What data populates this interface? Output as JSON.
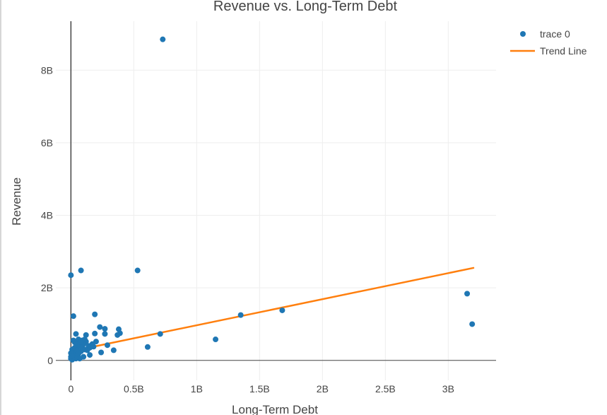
{
  "chart_data": {
    "type": "scatter",
    "title": "Revenue vs. Long-Term Debt",
    "xlabel": "Long-Term Debt",
    "ylabel": "Revenue",
    "xlim": [
      -0.12,
      3.38
    ],
    "ylim": [
      -0.55,
      9.35
    ],
    "x_ticks": [
      0,
      0.5,
      1,
      1.5,
      2,
      2.5,
      3
    ],
    "x_tick_labels": [
      "0",
      "0.5B",
      "1B",
      "1.5B",
      "2B",
      "2.5B",
      "3B"
    ],
    "y_ticks": [
      0,
      2,
      4,
      6,
      8
    ],
    "y_tick_labels": [
      "0",
      "2B",
      "4B",
      "6B",
      "8B"
    ],
    "grid": true,
    "legend_position": "top-right",
    "colors": {
      "points": "#1f77b4",
      "trend": "#ff7f0e",
      "grid": "#eeeeee",
      "zero_line": "#444444"
    },
    "series": [
      {
        "name": "trace 0",
        "mode": "markers",
        "points": [
          [
            0.73,
            8.85
          ],
          [
            0.0,
            2.35
          ],
          [
            0.08,
            2.48
          ],
          [
            0.53,
            2.48
          ],
          [
            0.02,
            1.22
          ],
          [
            0.19,
            1.27
          ],
          [
            3.15,
            1.84
          ],
          [
            3.19,
            1.0
          ],
          [
            1.35,
            1.25
          ],
          [
            1.68,
            1.38
          ],
          [
            1.15,
            0.58
          ],
          [
            0.61,
            0.37
          ],
          [
            0.71,
            0.73
          ],
          [
            0.38,
            0.86
          ],
          [
            0.39,
            0.75
          ],
          [
            0.37,
            0.7
          ],
          [
            0.27,
            0.87
          ],
          [
            0.23,
            0.92
          ],
          [
            0.27,
            0.73
          ],
          [
            0.19,
            0.74
          ],
          [
            0.12,
            0.7
          ],
          [
            0.04,
            0.73
          ],
          [
            0.06,
            0.58
          ],
          [
            0.09,
            0.55
          ],
          [
            0.12,
            0.52
          ],
          [
            0.2,
            0.52
          ],
          [
            0.17,
            0.45
          ],
          [
            0.14,
            0.4
          ],
          [
            0.18,
            0.38
          ],
          [
            0.29,
            0.42
          ],
          [
            0.34,
            0.28
          ],
          [
            0.24,
            0.22
          ],
          [
            0.15,
            0.15
          ],
          [
            0.1,
            0.1
          ],
          [
            0.02,
            0.55
          ],
          [
            0.03,
            0.5
          ],
          [
            0.05,
            0.45
          ],
          [
            0.07,
            0.4
          ],
          [
            0.09,
            0.35
          ],
          [
            0.11,
            0.3
          ],
          [
            0.13,
            0.28
          ],
          [
            0.01,
            0.3
          ],
          [
            0.02,
            0.25
          ],
          [
            0.03,
            0.2
          ],
          [
            0.04,
            0.15
          ],
          [
            0.05,
            0.12
          ],
          [
            0.06,
            0.08
          ],
          [
            0.07,
            0.05
          ],
          [
            0.08,
            0.25
          ],
          [
            0.1,
            0.45
          ],
          [
            0.0,
            0.1
          ],
          [
            0.0,
            0.05
          ],
          [
            0.01,
            0.02
          ],
          [
            0.02,
            0.08
          ],
          [
            0.03,
            0.35
          ],
          [
            0.04,
            0.05
          ],
          [
            0.05,
            0.28
          ],
          [
            0.06,
            0.18
          ],
          [
            0.0,
            0.2
          ],
          [
            0.01,
            0.12
          ],
          [
            0.08,
            0.5
          ],
          [
            0.11,
            0.58
          ],
          [
            0.15,
            0.35
          ]
        ]
      },
      {
        "name": "Trend Line",
        "mode": "line",
        "points": [
          [
            0.0,
            0.25
          ],
          [
            3.2,
            2.55
          ]
        ]
      }
    ]
  }
}
